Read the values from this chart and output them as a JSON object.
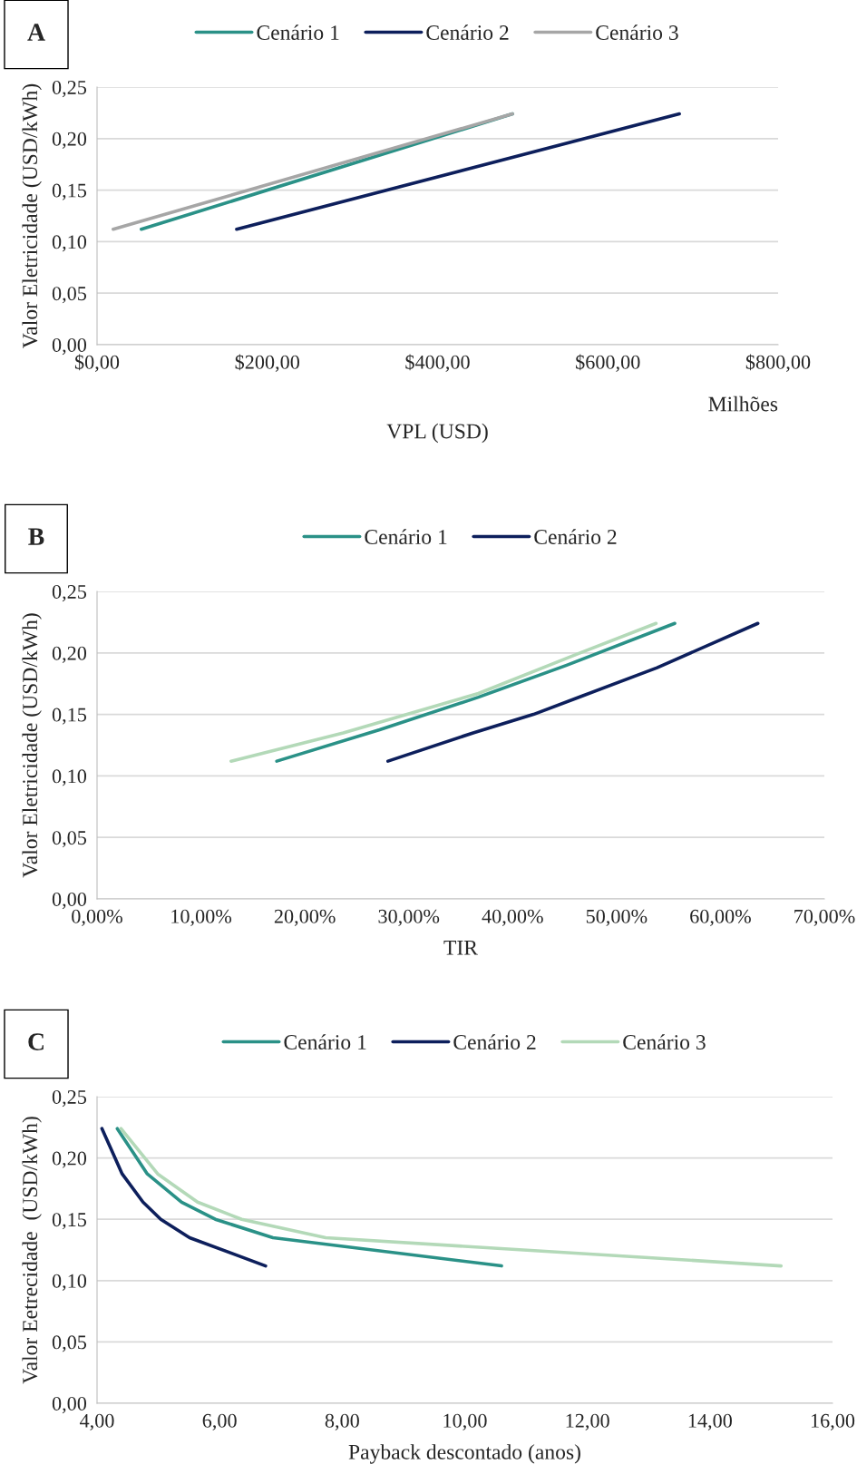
{
  "chart_data": [
    {
      "type": "line",
      "title": "A",
      "xlabel": "VPL (USD)",
      "ylabel": "Valor Eletricidade (USD/kWh)",
      "annotations": [
        "Milhões"
      ],
      "series": [
        {
          "name": "Cenário 1",
          "color": "#2a9187",
          "x": [
            52,
            488
          ],
          "values": [
            0.112,
            0.224
          ]
        },
        {
          "name": "Cenário 2",
          "color": "#0d1f5c",
          "x": [
            164,
            684
          ],
          "values": [
            0.112,
            0.224
          ]
        },
        {
          "name": "Cenário 3",
          "color": "#a6a6a6",
          "x": [
            19,
            488
          ],
          "values": [
            0.112,
            0.224
          ]
        }
      ],
      "xlim": [
        0,
        800
      ],
      "xticks": [
        {
          "value": 0,
          "label": "$0,00"
        },
        {
          "value": 200,
          "label": "$200,00"
        },
        {
          "value": 400,
          "label": "$400,00"
        },
        {
          "value": 600,
          "label": "$600,00"
        },
        {
          "value": 800,
          "label": "$800,00"
        }
      ],
      "ylim": [
        0,
        0.25
      ],
      "yticks": [
        {
          "value": 0,
          "label": "0,00"
        },
        {
          "value": 0.05,
          "label": "0,05"
        },
        {
          "value": 0.1,
          "label": "0,10"
        },
        {
          "value": 0.15,
          "label": "0,15"
        },
        {
          "value": 0.2,
          "label": "0,20"
        },
        {
          "value": 0.25,
          "label": "0,25"
        }
      ],
      "grid": "y",
      "legend": "top",
      "line_style": "solid"
    },
    {
      "type": "line",
      "title": "B",
      "xlabel": "TIR",
      "ylabel": "Valor Eletricidade (USD/kWh)",
      "series": [
        {
          "name": "Cenário 1",
          "color": "#2a9187",
          "x": [
            17.3,
            27.2,
            36.7,
            45.2,
            55.6
          ],
          "values": [
            0.112,
            0.1375,
            0.164,
            0.19,
            0.224
          ]
        },
        {
          "name": "Cenário 2",
          "color": "#0d1f5c",
          "x": [
            28.0,
            36.2,
            42.0,
            46.7,
            53.9,
            63.6
          ],
          "values": [
            0.112,
            0.135,
            0.15,
            0.165,
            0.188,
            0.224
          ]
        },
        {
          "color": "#b3d9b8",
          "x": [
            12.9,
            23.7,
            36.7,
            46.2,
            53.8
          ],
          "values": [
            0.112,
            0.135,
            0.167,
            0.199,
            0.224
          ]
        }
      ],
      "xlim": [
        0,
        70
      ],
      "xticks": [
        {
          "value": 0,
          "label": "0,00%"
        },
        {
          "value": 10,
          "label": "10,00%"
        },
        {
          "value": 20,
          "label": "20,00%"
        },
        {
          "value": 30,
          "label": "30,00%"
        },
        {
          "value": 40,
          "label": "40,00%"
        },
        {
          "value": 50,
          "label": "50,00%"
        },
        {
          "value": 60,
          "label": "60,00%"
        },
        {
          "value": 70,
          "label": "70,00%"
        }
      ],
      "ylim": [
        0,
        0.25
      ],
      "yticks": [
        {
          "value": 0,
          "label": "0,00"
        },
        {
          "value": 0.05,
          "label": "0,05"
        },
        {
          "value": 0.1,
          "label": "0,10"
        },
        {
          "value": 0.15,
          "label": "0,15"
        },
        {
          "value": 0.2,
          "label": "0,20"
        },
        {
          "value": 0.25,
          "label": "0,25"
        }
      ],
      "grid": "y",
      "legend": "top",
      "line_style": "solid"
    },
    {
      "type": "line",
      "title": "C",
      "xlabel": "Payback descontado (anos)",
      "ylabel": "Valor Eetrecidade  (USD/kWh)",
      "series": [
        {
          "name": "Cenário 1",
          "color": "#2a9187",
          "x": [
            4.33,
            4.82,
            5.38,
            5.93,
            6.87,
            10.6
          ],
          "values": [
            0.224,
            0.187,
            0.164,
            0.15,
            0.135,
            0.112
          ]
        },
        {
          "name": "Cenário 2",
          "color": "#0d1f5c",
          "x": [
            4.08,
            4.41,
            4.75,
            5.04,
            5.51,
            6.75
          ],
          "values": [
            0.224,
            0.187,
            0.164,
            0.15,
            0.135,
            0.112
          ]
        },
        {
          "name": "Cenário 3",
          "color": "#b3d9b8",
          "x": [
            4.39,
            4.99,
            5.64,
            6.36,
            7.73,
            15.16
          ],
          "values": [
            0.224,
            0.187,
            0.164,
            0.15,
            0.135,
            0.112
          ]
        }
      ],
      "xlim": [
        4,
        16
      ],
      "xticks": [
        {
          "value": 4,
          "label": "4,00"
        },
        {
          "value": 6,
          "label": "6,00"
        },
        {
          "value": 8,
          "label": "8,00"
        },
        {
          "value": 10,
          "label": "10,00"
        },
        {
          "value": 12,
          "label": "12,00"
        },
        {
          "value": 14,
          "label": "14,00"
        },
        {
          "value": 16,
          "label": "16,00"
        }
      ],
      "ylim": [
        0,
        0.25
      ],
      "yticks": [
        {
          "value": 0,
          "label": "0,00"
        },
        {
          "value": 0.05,
          "label": "0,05"
        },
        {
          "value": 0.1,
          "label": "0,10"
        },
        {
          "value": 0.15,
          "label": "0,15"
        },
        {
          "value": 0.2,
          "label": "0,20"
        },
        {
          "value": 0.25,
          "label": "0,25"
        }
      ],
      "grid": "y",
      "legend": "top",
      "line_style": "solid"
    }
  ]
}
